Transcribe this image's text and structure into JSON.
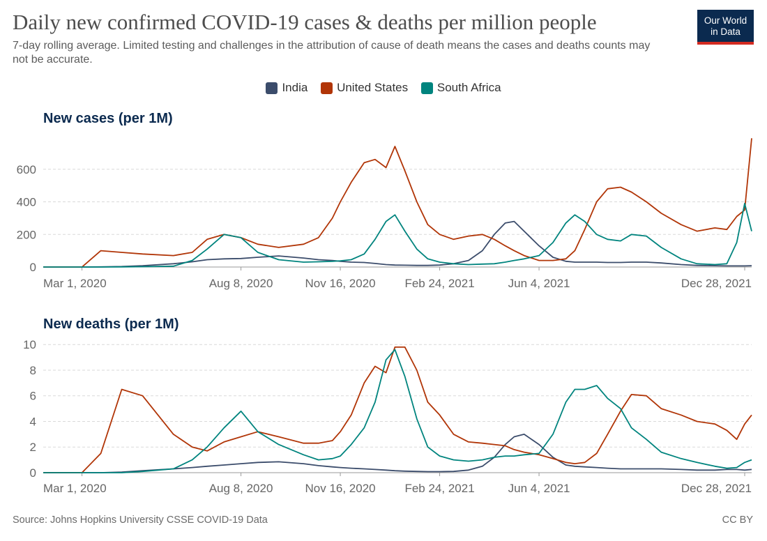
{
  "header": {
    "title": "Daily new confirmed COVID-19 cases & deaths per million people",
    "subtitle": "7-day rolling average. Limited testing and challenges in the attribution of cause of death means the cases and deaths counts may not be accurate."
  },
  "logo": {
    "line1": "Our World",
    "line2": "in Data"
  },
  "footer": {
    "source": "Source: Johns Hopkins University CSSE COVID-19 Data",
    "license": "CC BY"
  },
  "colors": {
    "India": "#3b4c6b",
    "United States": "#b13507",
    "South Africa": "#00847e"
  },
  "chart_data": [
    {
      "type": "line",
      "title": "New cases (per 1M)",
      "x_tick_labels": [
        "Mar 1, 2020",
        "Aug 8, 2020",
        "Nov 16, 2020",
        "Feb 24, 2021",
        "Jun 4, 2021",
        "Dec 28, 2021"
      ],
      "x_range": [
        "2020-01-22",
        "2022-01-04"
      ],
      "ylim": [
        0,
        800
      ],
      "y_ticks": [
        0,
        200,
        400,
        600
      ],
      "grid": true,
      "legend_position": "top-center",
      "x": [
        "2020-01-22",
        "2020-03-01",
        "2020-03-20",
        "2020-04-10",
        "2020-05-01",
        "2020-06-01",
        "2020-06-20",
        "2020-07-05",
        "2020-07-22",
        "2020-08-08",
        "2020-08-25",
        "2020-09-15",
        "2020-10-10",
        "2020-10-25",
        "2020-11-08",
        "2020-11-16",
        "2020-11-27",
        "2020-12-10",
        "2020-12-21",
        "2021-01-01",
        "2021-01-10",
        "2021-01-20",
        "2021-02-01",
        "2021-02-12",
        "2021-02-24",
        "2021-03-10",
        "2021-03-25",
        "2021-04-08",
        "2021-04-20",
        "2021-05-01",
        "2021-05-10",
        "2021-05-20",
        "2021-06-04",
        "2021-06-18",
        "2021-07-01",
        "2021-07-10",
        "2021-07-20",
        "2021-08-01",
        "2021-08-12",
        "2021-08-25",
        "2021-09-05",
        "2021-09-20",
        "2021-10-05",
        "2021-10-25",
        "2021-11-10",
        "2021-11-28",
        "2021-12-10",
        "2021-12-20",
        "2021-12-28",
        "2022-01-04"
      ],
      "series": [
        {
          "name": "India",
          "values": [
            0,
            0,
            1,
            3,
            8,
            20,
            32,
            45,
            50,
            52,
            60,
            68,
            55,
            45,
            40,
            35,
            30,
            28,
            22,
            15,
            12,
            11,
            10,
            10,
            12,
            20,
            40,
            100,
            200,
            270,
            280,
            220,
            130,
            60,
            35,
            30,
            30,
            30,
            28,
            28,
            30,
            30,
            25,
            15,
            10,
            8,
            7,
            7,
            7,
            8
          ]
        },
        {
          "name": "United States",
          "values": [
            0,
            0,
            100,
            90,
            80,
            70,
            90,
            170,
            200,
            180,
            140,
            120,
            140,
            180,
            300,
            400,
            520,
            640,
            660,
            610,
            740,
            590,
            400,
            260,
            200,
            170,
            190,
            200,
            170,
            130,
            100,
            70,
            40,
            40,
            50,
            100,
            230,
            400,
            480,
            490,
            460,
            400,
            330,
            260,
            220,
            240,
            230,
            310,
            350,
            790
          ]
        },
        {
          "name": "South Africa",
          "values": [
            0,
            0,
            0,
            1,
            2,
            5,
            40,
            110,
            200,
            180,
            90,
            45,
            30,
            32,
            35,
            38,
            45,
            80,
            170,
            280,
            320,
            220,
            110,
            50,
            30,
            20,
            15,
            18,
            20,
            30,
            40,
            50,
            70,
            150,
            270,
            320,
            280,
            200,
            170,
            160,
            200,
            190,
            120,
            50,
            20,
            15,
            20,
            150,
            390,
            220
          ]
        }
      ]
    },
    {
      "type": "line",
      "title": "New deaths (per 1M)",
      "x_tick_labels": [
        "Mar 1, 2020",
        "Aug 8, 2020",
        "Nov 16, 2020",
        "Feb 24, 2021",
        "Jun 4, 2021",
        "Dec 28, 2021"
      ],
      "x_range": [
        "2020-01-22",
        "2022-01-04"
      ],
      "ylim": [
        0,
        10.5
      ],
      "y_ticks": [
        0,
        2,
        4,
        6,
        8,
        10
      ],
      "grid": true,
      "x": [
        "2020-01-22",
        "2020-03-01",
        "2020-03-20",
        "2020-04-10",
        "2020-05-01",
        "2020-06-01",
        "2020-06-20",
        "2020-07-05",
        "2020-07-22",
        "2020-08-08",
        "2020-08-25",
        "2020-09-15",
        "2020-10-10",
        "2020-10-25",
        "2020-11-08",
        "2020-11-16",
        "2020-11-27",
        "2020-12-10",
        "2020-12-21",
        "2021-01-01",
        "2021-01-10",
        "2021-01-20",
        "2021-02-01",
        "2021-02-12",
        "2021-02-24",
        "2021-03-10",
        "2021-03-25",
        "2021-04-08",
        "2021-04-20",
        "2021-05-01",
        "2021-05-10",
        "2021-05-20",
        "2021-06-04",
        "2021-06-18",
        "2021-07-01",
        "2021-07-10",
        "2021-07-20",
        "2021-08-01",
        "2021-08-12",
        "2021-08-25",
        "2021-09-05",
        "2021-09-20",
        "2021-10-05",
        "2021-10-25",
        "2021-11-10",
        "2021-11-28",
        "2021-12-10",
        "2021-12-20",
        "2021-12-28",
        "2022-01-04"
      ],
      "series": [
        {
          "name": "India",
          "values": [
            0,
            0,
            0,
            0.05,
            0.15,
            0.3,
            0.4,
            0.5,
            0.6,
            0.7,
            0.8,
            0.85,
            0.7,
            0.55,
            0.45,
            0.4,
            0.35,
            0.3,
            0.25,
            0.2,
            0.15,
            0.12,
            0.1,
            0.08,
            0.08,
            0.1,
            0.2,
            0.5,
            1.2,
            2.2,
            2.8,
            3.0,
            2.2,
            1.2,
            0.6,
            0.5,
            0.45,
            0.4,
            0.35,
            0.3,
            0.3,
            0.3,
            0.3,
            0.25,
            0.2,
            0.2,
            0.25,
            0.25,
            0.2,
            0.25
          ]
        },
        {
          "name": "United States",
          "values": [
            0,
            0,
            1.5,
            6.5,
            6.0,
            3.0,
            2.0,
            1.7,
            2.4,
            2.8,
            3.2,
            2.8,
            2.3,
            2.3,
            2.5,
            3.2,
            4.5,
            7.0,
            8.3,
            7.8,
            9.8,
            9.8,
            8.0,
            5.5,
            4.5,
            3.0,
            2.4,
            2.3,
            2.2,
            2.1,
            1.8,
            1.6,
            1.4,
            1.1,
            0.8,
            0.7,
            0.8,
            1.5,
            3.0,
            4.8,
            6.1,
            6.0,
            5.0,
            4.5,
            4.0,
            3.8,
            3.3,
            2.6,
            3.8,
            4.5
          ]
        },
        {
          "name": "South Africa",
          "values": [
            0,
            0,
            0,
            0,
            0.1,
            0.3,
            1.0,
            2.0,
            3.5,
            4.8,
            3.2,
            2.2,
            1.4,
            1.0,
            1.1,
            1.3,
            2.2,
            3.5,
            5.5,
            8.8,
            9.6,
            7.5,
            4.2,
            2.0,
            1.3,
            1.0,
            0.9,
            1.0,
            1.2,
            1.3,
            1.3,
            1.4,
            1.5,
            3.0,
            5.5,
            6.5,
            6.5,
            6.8,
            5.8,
            5.0,
            3.5,
            2.6,
            1.6,
            1.1,
            0.8,
            0.5,
            0.35,
            0.4,
            0.8,
            1.0
          ]
        }
      ]
    }
  ]
}
